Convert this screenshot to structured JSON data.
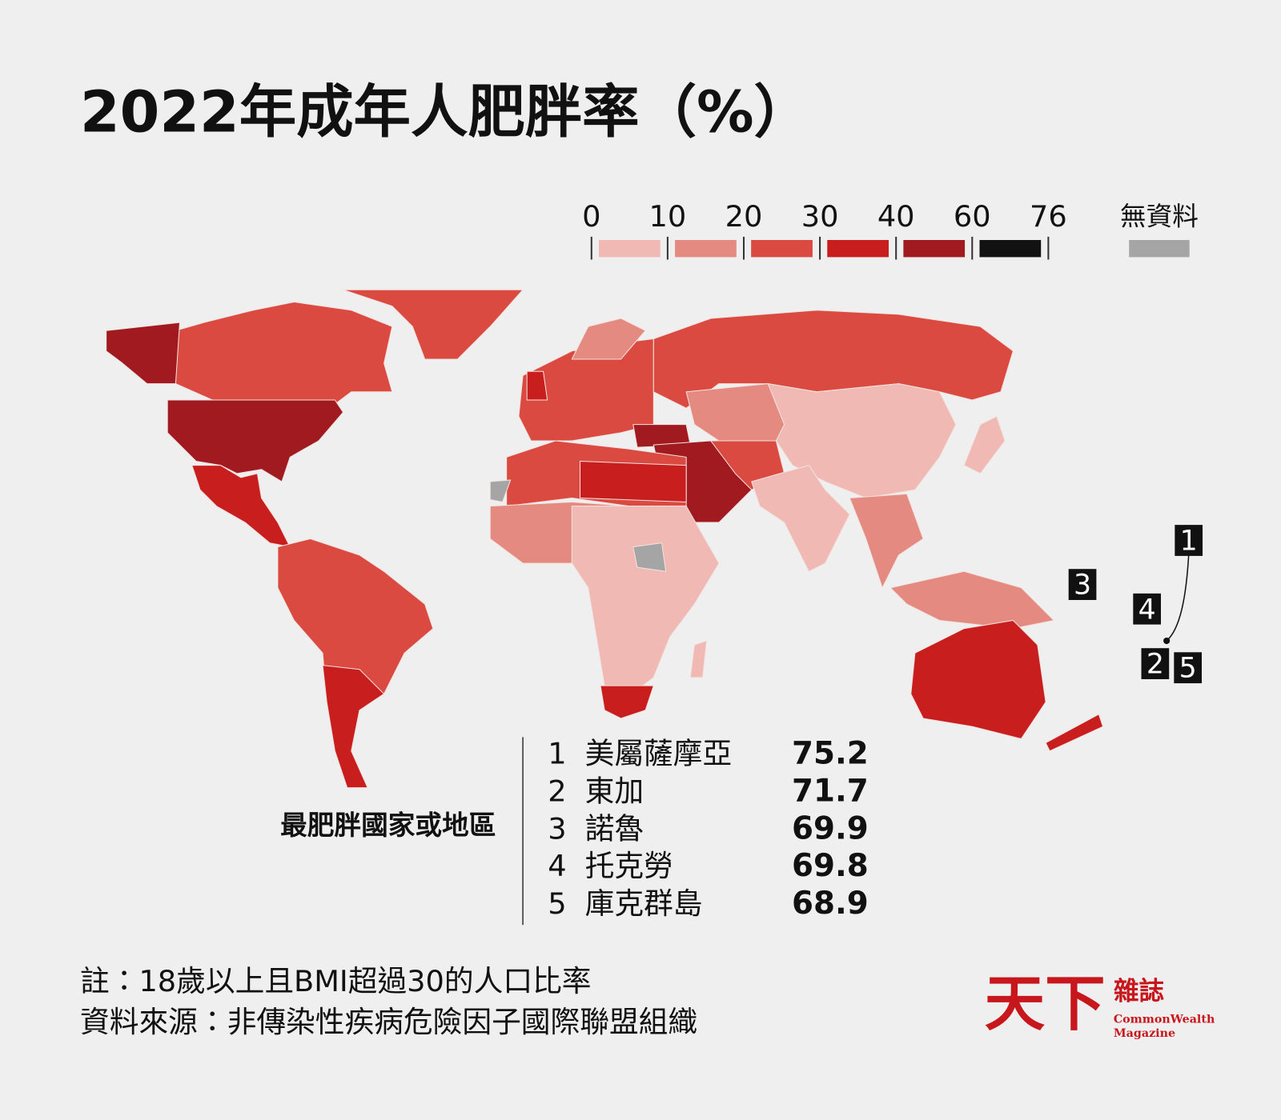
{
  "title": "2022年成年人肥胖率（%）",
  "legend": {
    "ticks": [
      0,
      10,
      20,
      30,
      40,
      60,
      76
    ],
    "colors": [
      "#f0b9b3",
      "#e58a80",
      "#da4a40",
      "#c81f1e",
      "#a01a20",
      "#121212"
    ],
    "no_data_label": "無資料",
    "no_data_color": "#a5a5a5"
  },
  "ranking": {
    "heading": "最肥胖國家或地區",
    "rows": [
      {
        "rank": 1,
        "name": "美屬薩摩亞",
        "value": 75.2
      },
      {
        "rank": 2,
        "name": "東加",
        "value": 71.7
      },
      {
        "rank": 3,
        "name": "諾魯",
        "value": 69.9
      },
      {
        "rank": 4,
        "name": "托克勞",
        "value": 69.8
      },
      {
        "rank": 5,
        "name": "庫克群島",
        "value": 68.9
      }
    ]
  },
  "notes": [
    "註：18歲以上且BMI超過30的人口比率",
    "資料來源：非傳染性疾病危險因子國際聯盟組織"
  ],
  "logo": {
    "mark": "天下",
    "name": "雜誌",
    "english_line1": "CommonWealth",
    "english_line2": "Magazine"
  }
}
